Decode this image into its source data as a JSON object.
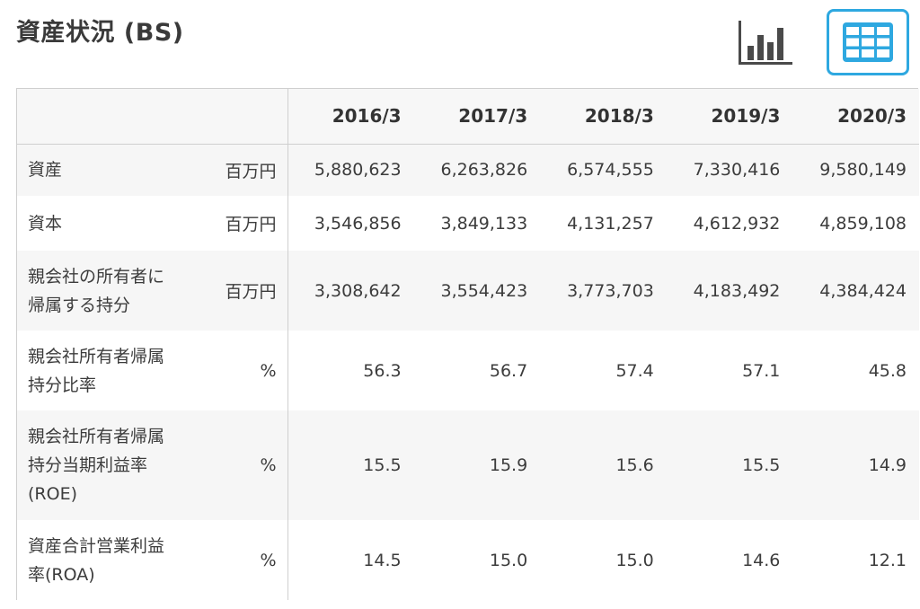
{
  "header": {
    "title": "資産状況 (BS)"
  },
  "toolbar": {
    "chart_view_icon": "bar-chart-icon",
    "table_view_icon": "table-grid-icon",
    "active_view": "table",
    "accent_color": "#2ea8e0"
  },
  "chart_data": {
    "type": "table",
    "columns": [
      "2016/3",
      "2017/3",
      "2018/3",
      "2019/3",
      "2020/3"
    ],
    "rows": [
      {
        "label_lines": [
          "資産"
        ],
        "unit": "百万円",
        "values": [
          "5,880,623",
          "6,263,826",
          "6,574,555",
          "7,330,416",
          "9,580,149"
        ]
      },
      {
        "label_lines": [
          "資本"
        ],
        "unit": "百万円",
        "values": [
          "3,546,856",
          "3,849,133",
          "4,131,257",
          "4,612,932",
          "4,859,108"
        ]
      },
      {
        "label_lines": [
          "親会社の所有者に",
          "帰属する持分"
        ],
        "unit": "百万円",
        "values": [
          "3,308,642",
          "3,554,423",
          "3,773,703",
          "4,183,492",
          "4,384,424"
        ]
      },
      {
        "label_lines": [
          "親会社所有者帰属",
          "持分比率"
        ],
        "unit": "%",
        "values": [
          "56.3",
          "56.7",
          "57.4",
          "57.1",
          "45.8"
        ]
      },
      {
        "label_lines": [
          "親会社所有者帰属",
          "持分当期利益率",
          "(ROE)"
        ],
        "unit": "%",
        "values": [
          "15.5",
          "15.9",
          "15.6",
          "15.5",
          "14.9"
        ]
      },
      {
        "label_lines": [
          "資産合計営業利益",
          "率(ROA)"
        ],
        "unit": "%",
        "values": [
          "14.5",
          "15.0",
          "15.0",
          "14.6",
          "12.1"
        ]
      }
    ]
  }
}
